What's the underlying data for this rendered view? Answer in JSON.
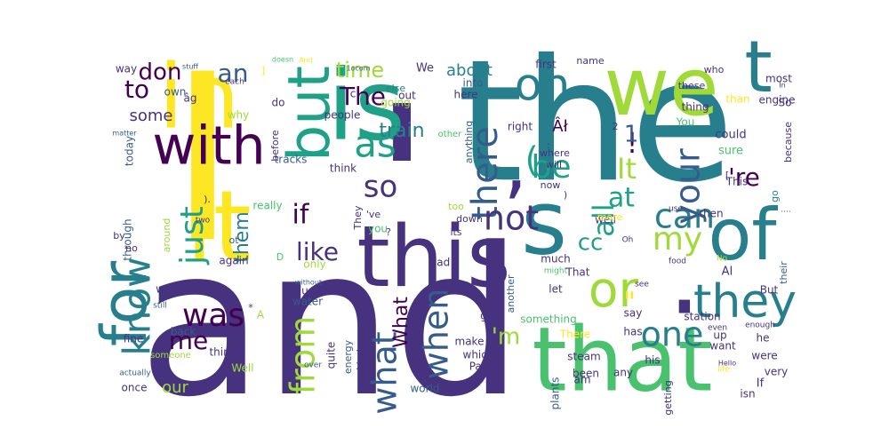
{
  "chart_data": {
    "type": "wordcloud",
    "colors": {
      "background": "#ffffff",
      "palette": [
        "#440154",
        "#46327e",
        "#365c8d",
        "#277f8e",
        "#1fa187",
        "#4ac16d",
        "#a0da39",
        "#fde725"
      ]
    },
    "words": [
      {
        "text": "and",
        "weight": 100
      },
      {
        "text": "the",
        "weight": 98
      },
      {
        "text": "I",
        "weight": 96
      },
      {
        "text": "'",
        "weight": 90
      },
      {
        "text": "s",
        "weight": 70
      },
      {
        "text": ".",
        "weight": 68
      },
      {
        "text": "is",
        "weight": 64
      },
      {
        "text": "it",
        "weight": 62
      },
      {
        "text": "that",
        "weight": 60
      },
      {
        "text": "this",
        "weight": 58
      },
      {
        "text": "of",
        "weight": 56
      },
      {
        "text": "in",
        "weight": 55
      },
      {
        "text": "we",
        "weight": 54
      },
      {
        "text": "for",
        "weight": 50
      },
      {
        "text": "with",
        "weight": 48
      },
      {
        "text": "but",
        "weight": 44
      },
      {
        "text": "t",
        "weight": 42
      },
      {
        "text": ",",
        "weight": 40
      },
      {
        "text": "or",
        "weight": 38
      },
      {
        "text": "they",
        "weight": 36
      },
      {
        "text": "on",
        "weight": 34
      },
      {
        "text": "there",
        "weight": 32
      },
      {
        "text": "as",
        "weight": 32
      },
      {
        "text": "can",
        "weight": 30
      },
      {
        "text": "not",
        "weight": 30
      },
      {
        "text": "your",
        "weight": 30
      },
      {
        "text": "what",
        "weight": 30
      },
      {
        "text": "know",
        "weight": 30
      },
      {
        "text": "one",
        "weight": 28
      },
      {
        "text": "my",
        "weight": 28
      },
      {
        "text": "was",
        "weight": 28
      },
      {
        "text": "just",
        "weight": 28
      },
      {
        "text": "from",
        "weight": 28
      },
      {
        "text": "when",
        "weight": 28
      },
      {
        "text": "so",
        "weight": 28
      },
      {
        "text": "be",
        "weight": 28
      },
      {
        "text": "(",
        "weight": 28
      },
      {
        "text": "It",
        "weight": 27
      },
      {
        "text": "all",
        "weight": 27
      },
      {
        "text": "\"",
        "weight": 26
      },
      {
        "text": "The",
        "weight": 25
      },
      {
        "text": "an",
        "weight": 25
      },
      {
        "text": "if",
        "weight": 25
      },
      {
        "text": "like",
        "weight": 25
      },
      {
        "text": "to",
        "weight": 24
      },
      {
        "text": "me",
        "weight": 24
      },
      {
        "text": "at",
        "weight": 24
      },
      {
        "text": "'re",
        "weight": 22
      },
      {
        "text": "!",
        "weight": 22
      },
      {
        "text": "time",
        "weight": 22
      },
      {
        "text": "don",
        "weight": 22
      },
      {
        "text": "cc",
        "weight": 22
      },
      {
        "text": "'m",
        "weight": 22
      },
      {
        "text": "train",
        "weight": 22
      },
      {
        "text": "them",
        "weight": 20
      },
      {
        "text": "our",
        "weight": 20
      },
      {
        "text": "some",
        "weight": 20
      },
      {
        "text": "about",
        "weight": 18
      },
      {
        "text": "What",
        "weight": 18
      },
      {
        "text": "Âł",
        "weight": 18
      },
      {
        "text": "1",
        "weight": 18
      },
      {
        "text": "We",
        "weight": 12
      },
      {
        "text": "way",
        "weight": 12
      },
      {
        "text": "own",
        "weight": 12
      },
      {
        "text": "âg",
        "weight": 12
      },
      {
        "text": "each",
        "weight": 10
      },
      {
        "text": "doesn",
        "weight": 9
      },
      {
        "text": "stuff",
        "weight": 9
      },
      {
        "text": "And",
        "weight": 9
      },
      {
        "text": "else",
        "weight": 11
      },
      {
        "text": "into",
        "weight": 12
      },
      {
        "text": "here",
        "weight": 12
      },
      {
        "text": "going",
        "weight": 12
      },
      {
        "text": "out",
        "weight": 12
      },
      {
        "text": "first",
        "weight": 12
      },
      {
        "text": "name",
        "weight": 11
      },
      {
        "text": "who",
        "weight": 11
      },
      {
        "text": "these",
        "weight": 11
      },
      {
        "text": "most",
        "weight": 12
      },
      {
        "text": "engine",
        "weight": 12
      },
      {
        "text": "than",
        "weight": 12
      },
      {
        "text": "So",
        "weight": 12
      },
      {
        "text": "thing",
        "weight": 12
      },
      {
        "text": "You",
        "weight": 12
      },
      {
        "text": "could",
        "weight": 13
      },
      {
        "text": "sure",
        "weight": 13
      },
      {
        "text": "because",
        "weight": 11
      },
      {
        "text": "right",
        "weight": 12
      },
      {
        "text": "2",
        "weight": 11
      },
      {
        "text": "where",
        "weight": 11
      },
      {
        "text": "will",
        "weight": 11
      },
      {
        "text": "now",
        "weight": 11
      },
      {
        "text": "This",
        "weight": 12
      },
      {
        "text": "people",
        "weight": 12
      },
      {
        "text": "why",
        "weight": 12
      },
      {
        "text": "do",
        "weight": 12
      },
      {
        "text": "really",
        "weight": 12
      },
      {
        "text": "other",
        "weight": 10
      },
      {
        "text": "anything",
        "weight": 11
      },
      {
        "text": "too",
        "weight": 11
      },
      {
        "text": "down",
        "weight": 11
      },
      {
        "text": "its",
        "weight": 11
      },
      {
        "text": "well",
        "weight": 12
      },
      {
        "text": "more",
        "weight": 11
      },
      {
        "text": "use",
        "weight": 9
      },
      {
        "text": "then",
        "weight": 12
      },
      {
        "text": "go",
        "weight": 11
      },
      {
        "text": "'ve",
        "weight": 11
      },
      {
        "text": "you",
        "weight": 12
      },
      {
        "text": "They",
        "weight": 11
      },
      {
        "text": "think",
        "weight": 12
      },
      {
        "text": "tracks",
        "weight": 12
      },
      {
        "text": "before",
        "weight": 11
      },
      {
        "text": "today",
        "weight": 12
      },
      {
        "text": "matter",
        "weight": 8
      },
      {
        "text": "through",
        "weight": 12
      },
      {
        "text": "around",
        "weight": 11
      },
      {
        "text": "two",
        "weight": 9
      },
      {
        "text": "by",
        "weight": 11
      },
      {
        "text": "no",
        "weight": 11
      },
      {
        "text": "again",
        "weight": 12
      },
      {
        "text": "ot",
        "weight": 11
      },
      {
        "text": "would",
        "weight": 12
      },
      {
        "text": "without",
        "weight": 8
      },
      {
        "text": "us",
        "weight": 12
      },
      {
        "text": "water",
        "weight": 12
      },
      {
        "text": "still",
        "weight": 9
      },
      {
        "text": "back",
        "weight": 12
      },
      {
        "text": "fine",
        "weight": 12
      },
      {
        "text": "A",
        "weight": 12
      },
      {
        "text": "things",
        "weight": 12
      },
      {
        "text": "someone",
        "weight": 10
      },
      {
        "text": "Well",
        "weight": 12
      },
      {
        "text": "actually",
        "weight": 9
      },
      {
        "text": "once",
        "weight": 12
      },
      {
        "text": "only",
        "weight": 12
      },
      {
        "text": "had",
        "weight": 12
      },
      {
        "text": "quite",
        "weight": 12
      },
      {
        "text": "energy",
        "weight": 11
      },
      {
        "text": "kind",
        "weight": 11
      },
      {
        "text": "make",
        "weight": 12
      },
      {
        "text": "get",
        "weight": 12
      },
      {
        "text": "which",
        "weight": 12
      },
      {
        "text": "Paris",
        "weight": 12
      },
      {
        "text": "world",
        "weight": 12
      },
      {
        "text": "over",
        "weight": 9
      },
      {
        "text": "another",
        "weight": 11
      },
      {
        "text": "much",
        "weight": 12
      },
      {
        "text": "let",
        "weight": 12
      },
      {
        "text": "might",
        "weight": 9
      },
      {
        "text": "plants",
        "weight": 12
      },
      {
        "text": "steam",
        "weight": 12
      },
      {
        "text": "That",
        "weight": 12
      },
      {
        "text": "something",
        "weight": 12
      },
      {
        "text": "There",
        "weight": 12
      },
      {
        "text": "say",
        "weight": 12
      },
      {
        "text": "has",
        "weight": 12
      },
      {
        "text": "been",
        "weight": 12
      },
      {
        "text": "am",
        "weight": 12
      },
      {
        "text": "any",
        "weight": 12
      },
      {
        "text": "getting",
        "weight": 11
      },
      {
        "text": "his",
        "weight": 12
      },
      {
        "text": "see",
        "weight": 9
      },
      {
        "text": "AI",
        "weight": 13
      },
      {
        "text": "station",
        "weight": 12
      },
      {
        "text": "up",
        "weight": 12
      },
      {
        "text": "want",
        "weight": 12
      },
      {
        "text": "even",
        "weight": 9
      },
      {
        "text": "were",
        "weight": 12
      },
      {
        "text": "he",
        "weight": 12
      },
      {
        "text": "very",
        "weight": 12
      },
      {
        "text": "If",
        "weight": 13
      },
      {
        "text": "isn",
        "weight": 12
      },
      {
        "text": "Hello",
        "weight": 8
      },
      {
        "text": "life",
        "weight": 9
      },
      {
        "text": "But",
        "weight": 12
      },
      {
        "text": "their",
        "weight": 11
      },
      {
        "text": "food",
        "weight": 9
      },
      {
        "text": "No",
        "weight": 9
      },
      {
        "text": "Oh",
        "weight": 9
      },
      {
        "text": "enough",
        "weight": 9
      },
      {
        "text": "In",
        "weight": 8
      },
      {
        "text": "[",
        "weight": 11
      },
      {
        "text": "]",
        "weight": 11
      },
      {
        "text": "c",
        "weight": 12
      },
      {
        "text": "?",
        "weight": 11
      },
      {
        "text": "*",
        "weight": 11
      },
      {
        "text": ":",
        "weight": 11
      },
      {
        "text": ")",
        "weight": 11
      },
      {
        "text": ").",
        "weight": 11
      },
      {
        "text": "D",
        "weight": 11
      },
      {
        "text": "1ocom",
        "weight": 8
      },
      {
        "text": "....",
        "weight": 9
      }
    ]
  }
}
